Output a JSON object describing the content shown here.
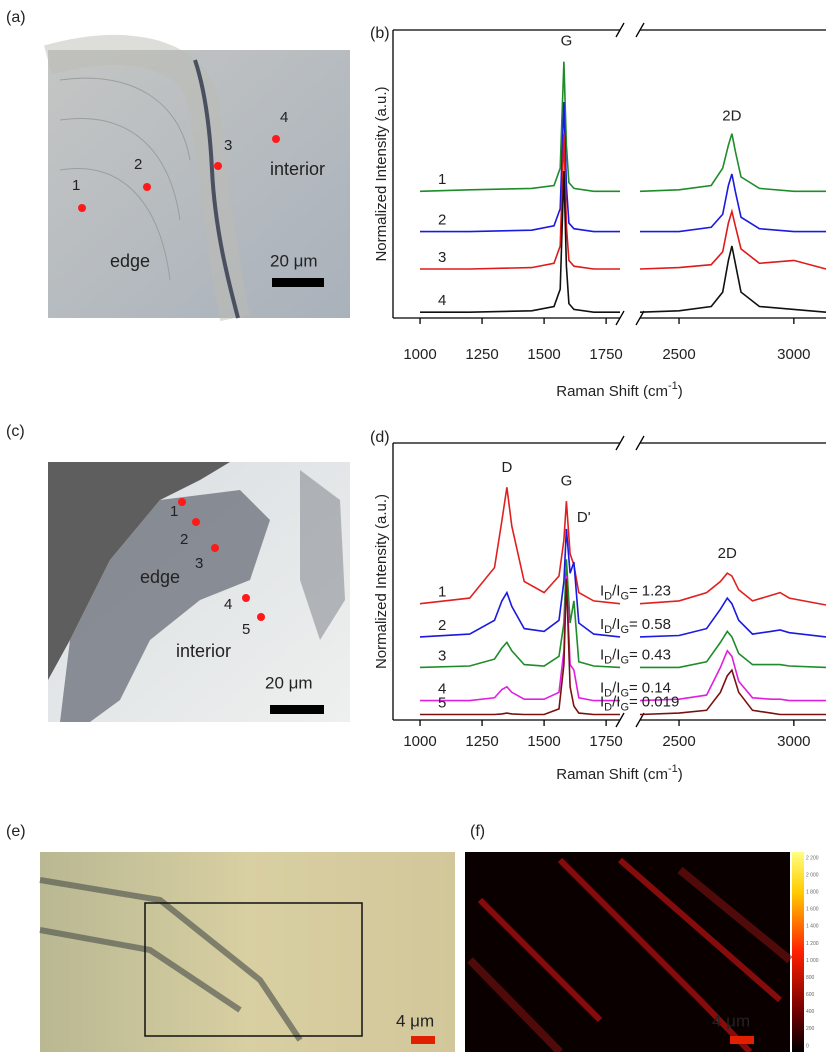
{
  "panel_labels": [
    "(a)",
    "(b)",
    "(c)",
    "(d)",
    "(e)",
    "(f)"
  ],
  "image_a": {
    "points": [
      "1",
      "2",
      "3",
      "4"
    ],
    "region_labels": [
      "edge",
      "interior"
    ],
    "scale_bar": "20 μm"
  },
  "image_c": {
    "points": [
      "1",
      "2",
      "3",
      "4",
      "5"
    ],
    "region_labels": [
      "edge",
      "interior"
    ],
    "scale_bar": "20 μm"
  },
  "image_e": {
    "scale_bar": "4 μm"
  },
  "image_f": {
    "scale_bar": "4 μm",
    "colorbar_labels": [
      "2 200",
      "2 000",
      "1 800",
      "1 600",
      "1 400",
      "1 200",
      "1 000",
      "800",
      "600",
      "400",
      "200",
      "0"
    ]
  },
  "chart_data": [
    {
      "type": "line",
      "x_label_parts": [
        "Raman Shift (cm",
        "-1",
        ")"
      ],
      "y_label": "Normalized Intensity (a.u.)",
      "xlim": [
        891,
        3140
      ],
      "x_break": [
        1806,
        2330
      ],
      "xticks": [
        1000,
        1250,
        1500,
        1750,
        2500,
        3000
      ],
      "ylim": [
        0,
        10
      ],
      "x": [
        1000,
        1200,
        1450,
        1540,
        1565,
        1580,
        1590,
        1600,
        1620,
        1700,
        1806,
        2330,
        2500,
        2640,
        2690,
        2715,
        2730,
        2745,
        2770,
        2850,
        3000,
        3140
      ],
      "series": [
        {
          "name": "1",
          "color": "#1e8c2a",
          "values": [
            4.4,
            4.45,
            4.5,
            4.6,
            5.2,
            8.9,
            6.0,
            4.7,
            4.5,
            4.4,
            4.4,
            4.4,
            4.45,
            4.6,
            5.2,
            6.0,
            6.4,
            5.8,
            4.9,
            4.5,
            4.4,
            4.4
          ]
        },
        {
          "name": "2",
          "color": "#1a1ae0",
          "values": [
            3.0,
            3.0,
            3.05,
            3.2,
            3.8,
            7.5,
            4.6,
            3.3,
            3.1,
            3.0,
            3.0,
            3.0,
            3.0,
            3.15,
            3.6,
            4.6,
            5.0,
            4.4,
            3.5,
            3.1,
            3.0,
            3.0
          ]
        },
        {
          "name": "3",
          "color": "#e01a1a",
          "values": [
            1.7,
            1.7,
            1.75,
            1.9,
            2.5,
            6.4,
            3.2,
            2.0,
            1.8,
            1.7,
            1.7,
            1.7,
            1.75,
            1.85,
            2.3,
            3.3,
            3.7,
            3.2,
            2.4,
            1.9,
            2.0,
            1.7
          ]
        },
        {
          "name": "4",
          "color": "#111111",
          "values": [
            0.2,
            0.2,
            0.25,
            0.4,
            1.0,
            5.1,
            1.8,
            0.5,
            0.3,
            0.2,
            0.2,
            0.2,
            0.25,
            0.4,
            0.9,
            2.0,
            2.5,
            1.9,
            0.9,
            0.4,
            0.3,
            0.2
          ]
        }
      ],
      "annotations": [
        {
          "text": "G",
          "x": 1590,
          "y": 9.6
        },
        {
          "text": "2D",
          "x": 2730,
          "y": 7.0
        }
      ]
    },
    {
      "type": "line",
      "x_label_parts": [
        "Raman Shift (cm",
        "-1",
        ")"
      ],
      "y_label": "Normalized Intensity (a.u.)",
      "xlim": [
        891,
        3140
      ],
      "x_break": [
        1806,
        2330
      ],
      "xticks": [
        1000,
        1250,
        1500,
        1750,
        2500,
        3000
      ],
      "ylim": [
        0,
        10
      ],
      "x": [
        1000,
        1200,
        1300,
        1330,
        1350,
        1370,
        1420,
        1500,
        1560,
        1580,
        1590,
        1605,
        1620,
        1640,
        1700,
        1806,
        2330,
        2500,
        2620,
        2680,
        2710,
        2730,
        2760,
        2820,
        2900,
        2940,
        2980,
        3140
      ],
      "series": [
        {
          "name": "1",
          "color": "#e02020",
          "values": [
            4.2,
            4.4,
            5.5,
            7.2,
            8.4,
            7.0,
            5.0,
            4.6,
            5.2,
            6.5,
            7.9,
            6.0,
            5.6,
            4.6,
            4.3,
            4.2,
            4.2,
            4.3,
            4.6,
            5.0,
            5.3,
            5.2,
            4.7,
            4.3,
            4.5,
            4.6,
            4.4,
            4.15
          ]
        },
        {
          "name": "2",
          "color": "#1a1ae0",
          "values": [
            3.0,
            3.1,
            3.6,
            4.3,
            4.6,
            4.1,
            3.3,
            3.2,
            3.6,
            5.0,
            6.9,
            5.3,
            5.7,
            3.5,
            3.1,
            3.0,
            3.0,
            3.05,
            3.3,
            4.0,
            4.4,
            4.2,
            3.6,
            3.1,
            3.2,
            3.25,
            3.15,
            3.0
          ]
        },
        {
          "name": "3",
          "color": "#1e8c2a",
          "values": [
            1.9,
            1.95,
            2.2,
            2.6,
            2.8,
            2.5,
            2.0,
            1.95,
            2.3,
            3.5,
            5.8,
            3.5,
            4.3,
            2.1,
            1.95,
            1.9,
            1.9,
            1.9,
            2.1,
            2.8,
            3.2,
            3.0,
            2.4,
            2.0,
            2.0,
            2.0,
            1.95,
            1.9
          ]
        },
        {
          "name": "4",
          "color": "#e020e0",
          "values": [
            0.7,
            0.7,
            0.8,
            1.1,
            1.2,
            1.0,
            0.75,
            0.75,
            1.0,
            2.5,
            5.2,
            2.0,
            1.8,
            0.8,
            0.7,
            0.7,
            0.7,
            0.75,
            0.9,
            1.9,
            2.5,
            2.3,
            1.4,
            0.8,
            0.75,
            0.75,
            0.7,
            0.7
          ]
        },
        {
          "name": "5",
          "color": "#7a1010",
          "values": [
            0.2,
            0.2,
            0.2,
            0.22,
            0.25,
            0.22,
            0.2,
            0.2,
            0.4,
            2.0,
            5.1,
            1.2,
            0.5,
            0.25,
            0.2,
            0.2,
            0.2,
            0.25,
            0.35,
            1.0,
            1.6,
            1.8,
            1.0,
            0.35,
            0.25,
            0.2,
            0.2,
            0.2
          ]
        }
      ],
      "annotations": [
        {
          "text": "D",
          "x": 1350,
          "y": 9.1
        },
        {
          "text": "G",
          "x": 1590,
          "y": 8.6
        },
        {
          "text": "D'",
          "x": 1660,
          "y": 7.3
        },
        {
          "text": "2D",
          "x": 2710,
          "y": 6.0
        }
      ],
      "ratio_prefix": [
        "I",
        "D",
        "/I",
        "G",
        "="
      ],
      "ratio_values": [
        1.23,
        0.58,
        0.43,
        0.14,
        0.019
      ]
    }
  ]
}
